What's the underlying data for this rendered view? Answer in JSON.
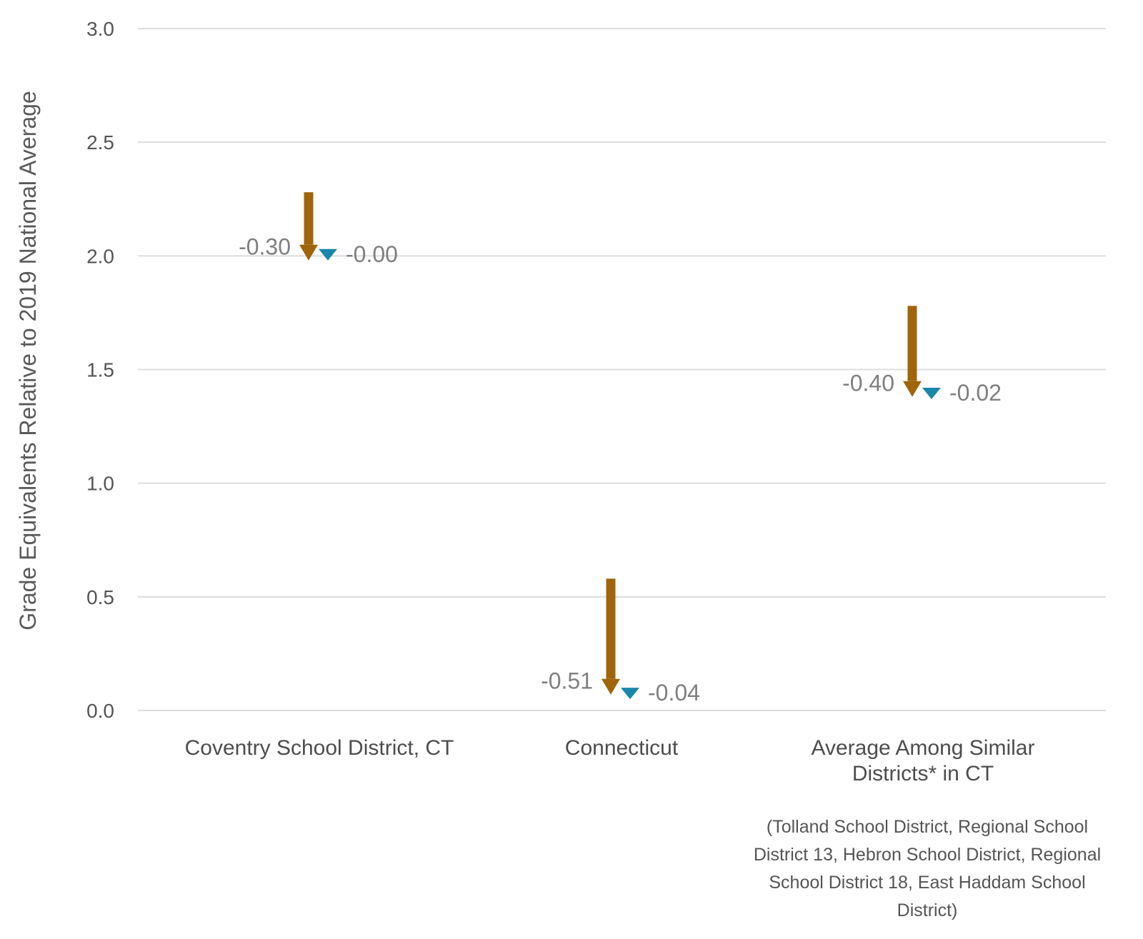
{
  "chart_data": {
    "type": "arrow",
    "ylabel": "Grade Equivalents Relative to 2019 National Average",
    "xlabel": "",
    "ylim": [
      0,
      3
    ],
    "yticks": [
      "0.0",
      "0.5",
      "1.0",
      "1.5",
      "2.0",
      "2.5",
      "3.0"
    ],
    "grid": true,
    "categories": [
      {
        "lines": [
          "Coventry School District, CT"
        ]
      },
      {
        "lines": [
          "Connecticut"
        ]
      },
      {
        "lines": [
          "Average Among Similar",
          "Districts* in CT"
        ]
      }
    ],
    "series": [
      {
        "color": "#a0640a",
        "start": [
          2.28,
          0.58,
          1.78
        ],
        "end": [
          1.98,
          0.07,
          1.38
        ],
        "labels": [
          "-0.30",
          "-0.51",
          "-0.40"
        ]
      },
      {
        "color": "#1a86a8",
        "start": [
          2.03,
          0.1,
          1.42
        ],
        "end": [
          2.03,
          0.06,
          1.4
        ],
        "labels": [
          "-0.00",
          "-0.04",
          "-0.02"
        ]
      }
    ],
    "footnote": [
      "(Tolland School District, Regional School",
      "District 13, Hebron School District, Regional",
      "School District 18, East Haddam School",
      "District)"
    ]
  }
}
